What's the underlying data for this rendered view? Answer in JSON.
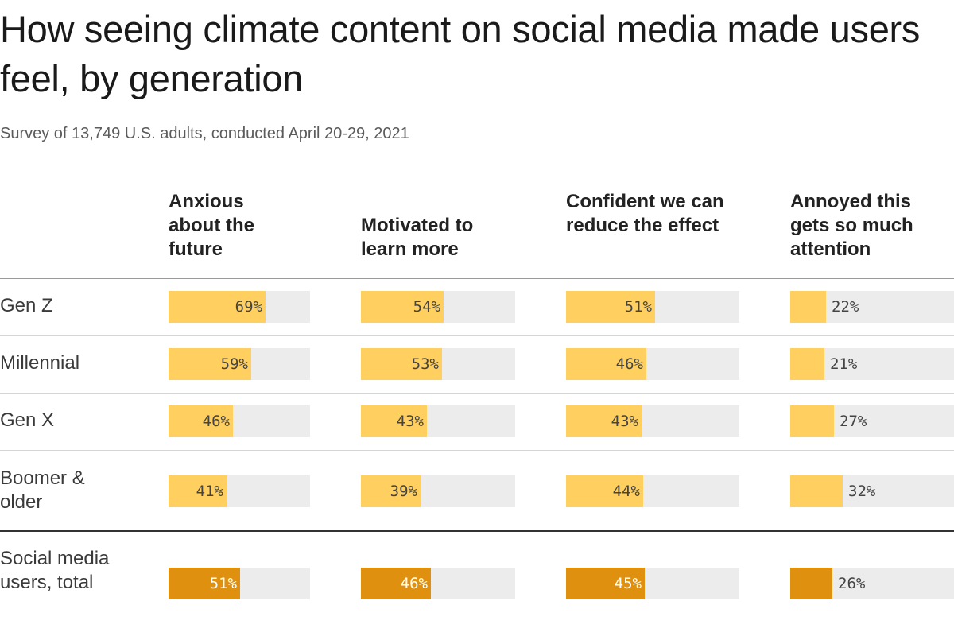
{
  "title": "How seeing climate content on social media made users feel, by generation",
  "subtitle": "Survey of 13,749 U.S. adults, conducted April 20-29, 2021",
  "colors": {
    "generation_bar": "#ffd060",
    "total_bar": "#e0900f",
    "track": "#ececec"
  },
  "chart_data": {
    "type": "bar",
    "layout": "small-multiples-table",
    "columns": [
      "Anxious about the future",
      "Motivated to learn more",
      "Confident we can reduce the effect",
      "Annoyed this gets so much attention"
    ],
    "rows": [
      {
        "label": "Gen Z",
        "values": [
          69,
          54,
          51,
          22
        ],
        "total": false
      },
      {
        "label": "Millennial",
        "values": [
          59,
          53,
          46,
          21
        ],
        "total": false
      },
      {
        "label": "Gen X",
        "values": [
          46,
          43,
          43,
          27
        ],
        "total": false
      },
      {
        "label": "Boomer & older",
        "values": [
          41,
          39,
          44,
          32
        ],
        "total": false
      },
      {
        "label": "Social media users, total",
        "values": [
          51,
          46,
          45,
          26
        ],
        "total": true
      }
    ],
    "value_suffix": "%",
    "xlim": [
      0,
      100
    ]
  }
}
